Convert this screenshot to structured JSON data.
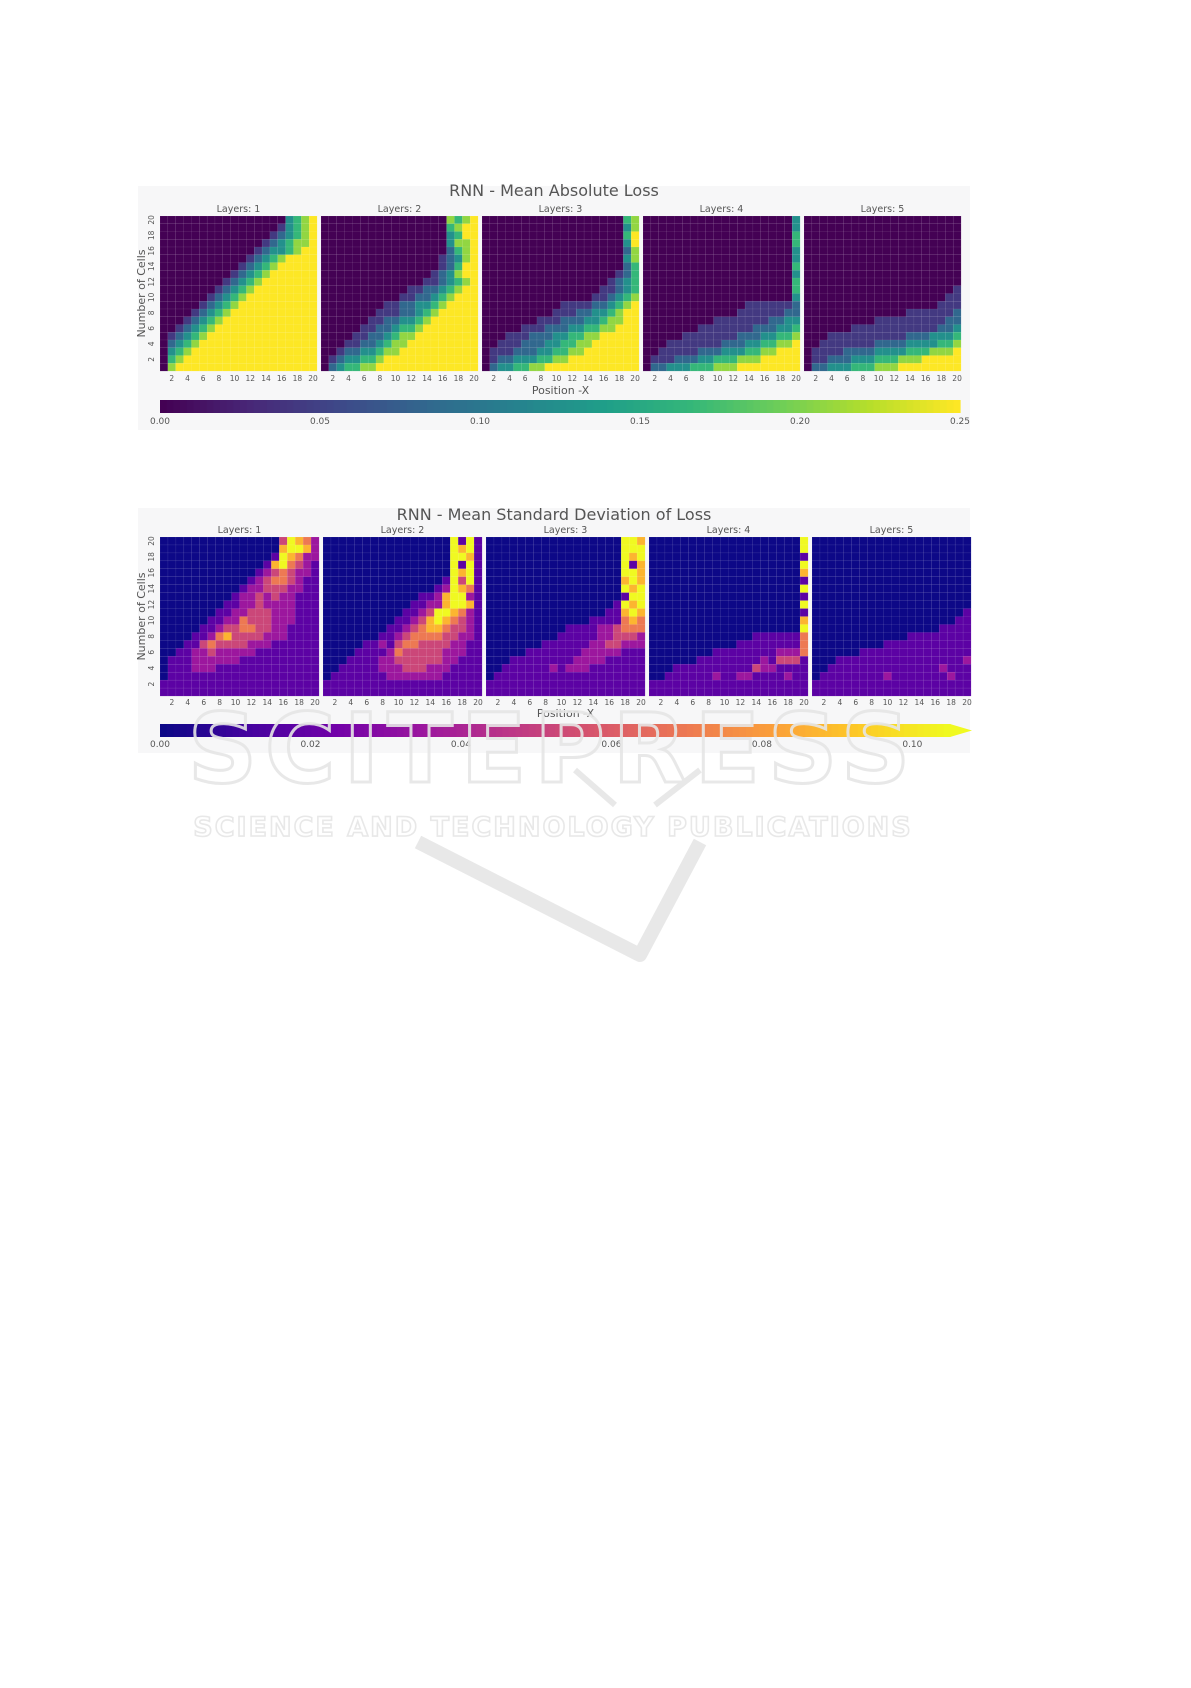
{
  "page": {
    "background": "#ffffff"
  },
  "watermark": {
    "text": "SCITEPRESS",
    "subtext": "SCIENCE AND TECHNOLOGY PUBLICATIONS",
    "color": "#e6e6e6"
  },
  "chart_data": [
    {
      "type": "heatmap",
      "id": "mae",
      "title": "RNN - Mean Absolute Loss",
      "xlabel": "Position -X",
      "ylabel": "Number of Cells",
      "xticks": [
        "2",
        "4",
        "6",
        "8",
        "10",
        "12",
        "14",
        "16",
        "18",
        "20"
      ],
      "yticks": [
        "2",
        "4",
        "6",
        "8",
        "10",
        "12",
        "14",
        "16",
        "18",
        "20"
      ],
      "grid": 20,
      "colormap": "viridis",
      "colorbar": {
        "ticks": [
          "0.00",
          "0.05",
          "0.10",
          "0.15",
          "0.20",
          "0.25"
        ],
        "vmin": 0,
        "vmax": 0.25,
        "extend": false
      },
      "panels": [
        {
          "title": "Layers: 1",
          "rows": [
            "00000000000000003456",
            "00000000000000013456",
            "00000000000000123456",
            "00000000000001234556",
            "00000000000012334566",
            "00000000000123456666",
            "00000000001234566666",
            "00000000012345666666",
            "00000000123456666666",
            "00000001234566666666",
            "00000012345666666666",
            "00000123456666666666",
            "00001234566666666666",
            "00012345666666666666",
            "00123456666666666666",
            "01234566666666666666",
            "02345666666666666666",
            "03456666666666666666",
            "04566666666666666666",
            "05666666666666666666"
          ]
        },
        {
          "title": "Layers: 2",
          "rows": [
            "00000000000000005456",
            "00000000000000004566",
            "00000000000000003466",
            "00000000000000003556",
            "00000000000000002456",
            "00000000000000012356",
            "00000000000000012466",
            "00000000000000123566",
            "00000000000001123456",
            "00000000000112234566",
            "00000000001122345666",
            "00000000112233456666",
            "00000001112234566666",
            "00000011223345666666",
            "00000112234456666666",
            "00001122345566666666",
            "00011223455666666666",
            "00122334556666666666",
            "01233445666666666666",
            "02344556666666666666"
          ]
        },
        {
          "title": "Layers: 3",
          "rows": [
            "00000000000000000045",
            "00000000000000000035",
            "00000000000000000046",
            "00000000000000000036",
            "00000000000000000025",
            "00000000000000000035",
            "00000000000000000024",
            "00000000000000000124",
            "00000000000000001234",
            "00000000000000011234",
            "00000000000000112345",
            "00000000001111223456",
            "00000000011122334566",
            "00000001112223345566",
            "00000111222334455666",
            "00011122233445566666",
            "00111222334455666666",
            "01112223344556666666",
            "01223334455666666666",
            "02334455666666666666"
          ]
        },
        {
          "title": "Layers: 4",
          "rows": [
            "00000000000000000003",
            "00000000000000000003",
            "00000000000000000004",
            "00000000000000000004",
            "00000000000000000003",
            "00000000000000000003",
            "00000000000000000004",
            "00000000000000000003",
            "00000000000000000004",
            "00000000000000000004",
            "00000000000000000003",
            "00000000000001111112",
            "00000000000011111122",
            "00000000011111112233",
            "00000001111111222334",
            "00000111111122233445",
            "00011111112223344556",
            "00111112223334455666",
            "01112223344455566666",
            "02233344455566666666"
          ]
        },
        {
          "title": "Layers: 5",
          "rows": [
            "00000000000000000000",
            "00000000000000000000",
            "00000000000000000000",
            "00000000000000000000",
            "00000000000000000000",
            "00000000000000000000",
            "00000000000000000000",
            "00000000000000000000",
            "00000000000000000000",
            "00000000000000000001",
            "00000000000000000011",
            "00000000000000000111",
            "00000000000001111112",
            "00000000011111111122",
            "00000011111111111223",
            "00011111111112223334",
            "00111111122223333445",
            "01111222233334445556",
            "01122233344455566666",
            "02233344455566666666"
          ]
        }
      ]
    },
    {
      "type": "heatmap",
      "id": "std",
      "title": "RNN - Mean Standard Deviation of Loss",
      "xlabel": "Position -X",
      "ylabel": "Number of Cells",
      "xticks": [
        "2",
        "4",
        "6",
        "8",
        "10",
        "12",
        "14",
        "16",
        "18",
        "20"
      ],
      "yticks": [
        "2",
        "4",
        "6",
        "8",
        "10",
        "12",
        "14",
        "16",
        "18",
        "20"
      ],
      "grid": 20,
      "colormap": "plasma",
      "colorbar": {
        "ticks": [
          "0.00",
          "0.02",
          "0.04",
          "0.06",
          "0.08",
          "0.10"
        ],
        "vmin": 0,
        "vmax": 0.105,
        "extend": true
      },
      "panels": [
        {
          "title": "Layers: 1",
          "rows": [
            "00000000000000036542",
            "00000000000000056652",
            "00000000000000165422",
            "00000000000001564321",
            "00000000000012343221",
            "00000000000123443211",
            "00000000001223332211",
            "00000000012232322111",
            "00000000112232222111",
            "00000001122333222111",
            "00000011224333222111",
            "00000112334433221111",
            "00001124533332221111",
            "00011343333222111111",
            "00112232222211111111",
            "01112222221111111111",
            "01112221111111111111",
            "01111111111111111111",
            "11111111111111111111",
            "11111111111111111111"
          ]
        },
        {
          "title": "Layers: 2",
          "rows": [
            "00000000000000006161",
            "00000000000000006561",
            "00000000000000006651",
            "00000000000000006161",
            "00000000000000006561",
            "00000000000000016361",
            "00000000000000126541",
            "00000000000011256621",
            "00000000000112256651",
            "00000000001123665421",
            "00000000011235654321",
            "00000000112345543321",
            "00000001123444433221",
            "00000112134433332211",
            "00001111243333322211",
            "00011112233333322111",
            "00111112223332221111",
            "01111111222222211111",
            "11111111111111111111",
            "11111111111111111111"
          ]
        },
        {
          "title": "Layers: 3",
          "rows": [
            "00000000000000000665",
            "00000000000000000666",
            "00000000000000000656",
            "00000000000000000615",
            "00000000000000000665",
            "00000000000000000565",
            "00000000000000000656",
            "00000000000000000166",
            "00000000000000001656",
            "00000000000000011565",
            "00000000000001111454",
            "00000000001111223444",
            "00000000011111223332",
            "00000001111112233222",
            "00000111111122222111",
            "00011111111222211111",
            "00111111212221111111",
            "01111111111111111111",
            "11111111111111111111",
            "11111111111111111111"
          ]
        },
        {
          "title": "Layers: 4",
          "rows": [
            "00000000000000000006",
            "00000000000000000006",
            "00000000000000000001",
            "00000000000000000006",
            "00000000000000000005",
            "00000000000000000001",
            "00000000000000000006",
            "00000000000000000001",
            "00000000000000000006",
            "00000000000000000001",
            "00000000000000000005",
            "00000000000000000006",
            "00000000000001111114",
            "00000000000111111114",
            "00000000111111112224",
            "00000011111111213331",
            "00011111111113221111",
            "00111111211221111211",
            "11111111111111111111",
            "11111111111111111111"
          ]
        },
        {
          "title": "Layers: 5",
          "rows": [
            "00000000000000000000",
            "00000000000000000000",
            "00000000000000000000",
            "00000000000000000000",
            "00000000000000000000",
            "00000000000000000000",
            "00000000000000000000",
            "00000000000000000000",
            "00000000000000000000",
            "00000000000000000001",
            "00000000000000000011",
            "00000000000000001111",
            "00000000000011111111",
            "00000000011111111111",
            "00000011111111111111",
            "00011111111111111112",
            "00111111111111112111",
            "01111111121111111211",
            "11111111111111111111",
            "11111111111111111111"
          ]
        }
      ]
    }
  ]
}
